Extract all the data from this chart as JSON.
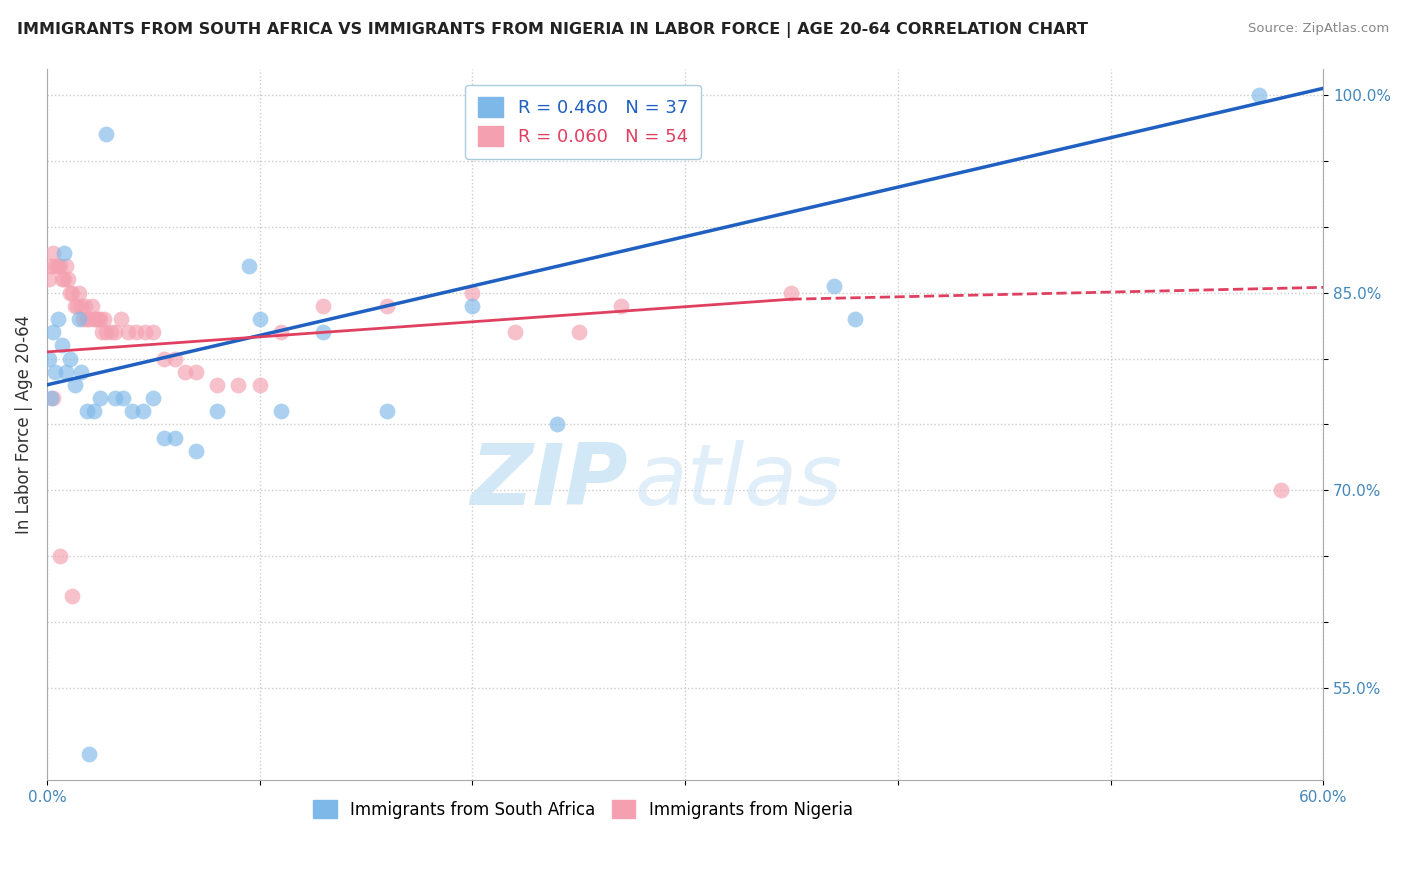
{
  "title": "IMMIGRANTS FROM SOUTH AFRICA VS IMMIGRANTS FROM NIGERIA IN LABOR FORCE | AGE 20-64 CORRELATION CHART",
  "source": "Source: ZipAtlas.com",
  "xlabel": "",
  "ylabel": "In Labor Force | Age 20-64",
  "xlim": [
    0.0,
    0.6
  ],
  "ylim": [
    0.48,
    1.02
  ],
  "xticks": [
    0.0,
    0.1,
    0.2,
    0.3,
    0.4,
    0.5,
    0.6
  ],
  "xticklabels": [
    "0.0%",
    "",
    "",
    "",
    "",
    "",
    "60.0%"
  ],
  "yticks": [
    0.55,
    0.6,
    0.65,
    0.7,
    0.75,
    0.8,
    0.85,
    0.9,
    0.95,
    1.0
  ],
  "yticklabels": [
    "55.0%",
    "",
    "",
    "70.0%",
    "",
    "",
    "85.0%",
    "",
    "",
    "100.0%"
  ],
  "legend_blue_label": "R = 0.460   N = 37",
  "legend_pink_label": "R = 0.060   N = 54",
  "scatter_blue_color": "#7eb8e8",
  "scatter_pink_color": "#f4a0b0",
  "line_blue_color": "#2060c0",
  "line_pink_color": "#e04060",
  "watermark_zip": "ZIP",
  "watermark_atlas": "atlas",
  "blue_line_x0": 0.0,
  "blue_line_y0": 0.78,
  "blue_line_x1": 0.6,
  "blue_line_y1": 1.005,
  "pink_line_solid_x0": 0.0,
  "pink_line_solid_y0": 0.805,
  "pink_line_solid_x1": 0.35,
  "pink_line_solid_y1": 0.845,
  "pink_line_dashed_x0": 0.35,
  "pink_line_dashed_y0": 0.845,
  "pink_line_dashed_x1": 0.6,
  "pink_line_dashed_y1": 0.854,
  "south_africa_x": [
    0.001,
    0.003,
    0.005,
    0.007,
    0.009,
    0.011,
    0.013,
    0.016,
    0.019,
    0.022,
    0.025,
    0.028,
    0.032,
    0.036,
    0.04,
    0.045,
    0.05,
    0.055,
    0.06,
    0.07,
    0.08,
    0.095,
    0.11,
    0.13,
    0.16,
    0.2,
    0.24,
    0.28,
    0.38,
    0.37,
    0.57,
    0.02,
    0.008,
    0.004,
    0.002,
    0.015,
    0.1
  ],
  "south_africa_y": [
    0.8,
    0.82,
    0.83,
    0.81,
    0.79,
    0.8,
    0.78,
    0.79,
    0.76,
    0.76,
    0.77,
    0.97,
    0.77,
    0.77,
    0.76,
    0.76,
    0.77,
    0.74,
    0.74,
    0.73,
    0.76,
    0.87,
    0.76,
    0.82,
    0.76,
    0.84,
    0.75,
    0.97,
    0.83,
    0.855,
    1.0,
    0.5,
    0.88,
    0.79,
    0.77,
    0.83,
    0.83
  ],
  "nigeria_x": [
    0.001,
    0.002,
    0.003,
    0.004,
    0.005,
    0.006,
    0.007,
    0.008,
    0.009,
    0.01,
    0.011,
    0.012,
    0.013,
    0.014,
    0.015,
    0.016,
    0.017,
    0.018,
    0.019,
    0.02,
    0.021,
    0.022,
    0.023,
    0.024,
    0.025,
    0.026,
    0.027,
    0.028,
    0.03,
    0.032,
    0.035,
    0.038,
    0.042,
    0.046,
    0.05,
    0.055,
    0.06,
    0.065,
    0.07,
    0.08,
    0.09,
    0.1,
    0.11,
    0.13,
    0.16,
    0.2,
    0.22,
    0.25,
    0.27,
    0.35,
    0.58,
    0.003,
    0.006,
    0.012
  ],
  "nigeria_y": [
    0.86,
    0.87,
    0.88,
    0.87,
    0.87,
    0.87,
    0.86,
    0.86,
    0.87,
    0.86,
    0.85,
    0.85,
    0.84,
    0.84,
    0.85,
    0.84,
    0.83,
    0.84,
    0.83,
    0.83,
    0.84,
    0.83,
    0.83,
    0.83,
    0.83,
    0.82,
    0.83,
    0.82,
    0.82,
    0.82,
    0.83,
    0.82,
    0.82,
    0.82,
    0.82,
    0.8,
    0.8,
    0.79,
    0.79,
    0.78,
    0.78,
    0.78,
    0.82,
    0.84,
    0.84,
    0.85,
    0.82,
    0.82,
    0.84,
    0.85,
    0.7,
    0.77,
    0.65,
    0.62
  ]
}
